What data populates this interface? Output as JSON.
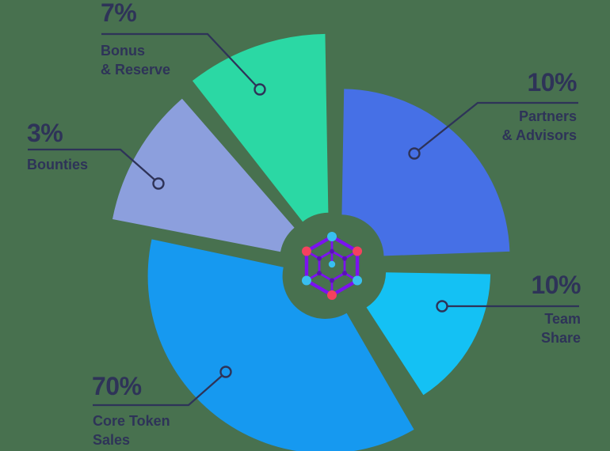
{
  "page": {
    "background_color": "#48714F",
    "text_color": "#2E3358"
  },
  "chart_data": {
    "type": "pie",
    "style": "exploded donut infographic with callout leader lines and center logo",
    "unit": "%",
    "categories": [
      "Bonus & Reserve",
      "Partners & Advisors",
      "Team Share",
      "Core Token Sales",
      "Bounties"
    ],
    "values": [
      7,
      10,
      10,
      70,
      3
    ],
    "segments": [
      {
        "key": "bonus",
        "label": "Bonus & Reserve",
        "value": 7,
        "color": "#2BD8A4"
      },
      {
        "key": "partners",
        "label": "Partners & Advisors",
        "value": 10,
        "color": "#4670E6"
      },
      {
        "key": "team",
        "label": "Team Share",
        "value": 10,
        "color": "#14C1F4"
      },
      {
        "key": "core",
        "label": "Core Token Sales",
        "value": 70,
        "color": "#1699F0"
      },
      {
        "key": "bounties",
        "label": "Bounties",
        "value": 3,
        "color": "#8C9FDD"
      }
    ],
    "legend_position": "callout labels around chart",
    "leader_line_color": "#2E3358"
  },
  "callouts": {
    "bonus": {
      "pct": "7%",
      "line1": "Bonus",
      "line2": "& Reserve"
    },
    "bounties": {
      "pct": "3%",
      "line1": "Bounties"
    },
    "partners": {
      "pct": "10%",
      "line1": "Partners",
      "line2": "& Advisors"
    },
    "team": {
      "pct": "10%",
      "line1": "Team",
      "line2": "Share"
    },
    "core": {
      "pct": "70%",
      "line1": "Core Token",
      "line2": "Sales"
    }
  },
  "center_logo": {
    "name": "hexagon network logo",
    "purple": "#7B12F0",
    "node_red": "#F5415E",
    "node_cyan": "#38BFF0",
    "inner_dot": "#5A10B8"
  }
}
